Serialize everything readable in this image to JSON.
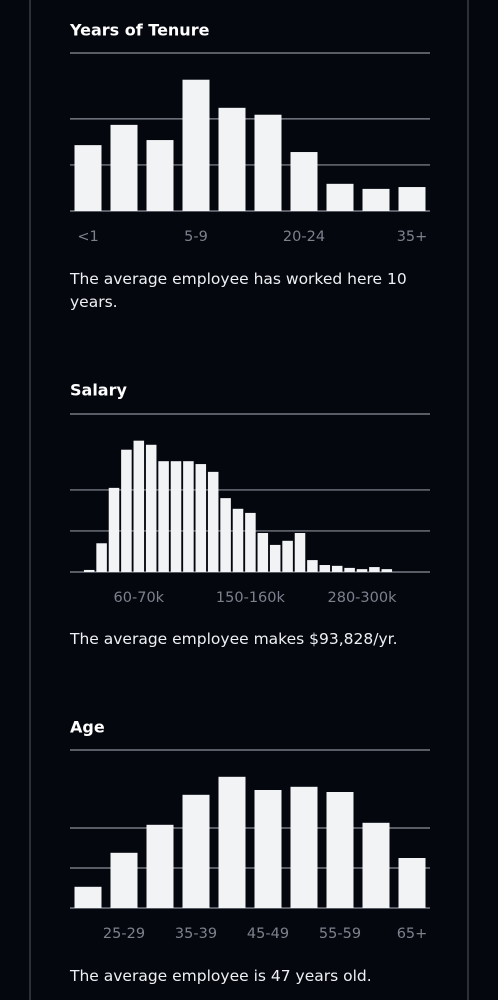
{
  "chart_data": [
    {
      "type": "bar",
      "title": "Years of Tenure",
      "categories": [
        "<1",
        null,
        null,
        "5-9",
        null,
        null,
        "20-24",
        null,
        null,
        "35+"
      ],
      "values": [
        14.3,
        18.7,
        15.4,
        28.5,
        22.4,
        20.9,
        12.8,
        5.9,
        4.8,
        5.2
      ],
      "color": "#f2f3f5",
      "ylim": [
        0,
        34.3
      ],
      "yticks": [
        0,
        10,
        20
      ],
      "grid": true,
      "annotation": "The average employee has worked here 10 years."
    },
    {
      "type": "bar",
      "title": "Salary",
      "categories": [
        null,
        null,
        null,
        null,
        "60-70k",
        null,
        null,
        null,
        null,
        null,
        null,
        null,
        null,
        "150-160k",
        null,
        null,
        null,
        null,
        null,
        null,
        null,
        null,
        "280-300k",
        null,
        null
      ],
      "values": [
        0.5,
        7,
        20.5,
        29.8,
        32,
        31,
        27,
        27,
        27,
        26.3,
        24.4,
        18,
        15.4,
        14.4,
        9.5,
        6.6,
        7.6,
        9.5,
        2.9,
        1.7,
        1.5,
        1,
        0.7,
        1.2,
        0.7
      ],
      "color": "#f2f3f5",
      "ylim": [
        0,
        38.5
      ],
      "yticks": [
        0,
        10,
        20
      ],
      "grid": true,
      "annotation": "The average employee makes $93,828/yr."
    },
    {
      "type": "bar",
      "title": "Age",
      "categories": [
        null,
        "25-29",
        null,
        "35-39",
        null,
        "45-49",
        null,
        "55-59",
        null,
        "65+"
      ],
      "values": [
        5.3,
        13.8,
        20.8,
        28.3,
        32.8,
        29.5,
        30.3,
        29,
        21.3,
        12.5
      ],
      "color": "#f2f3f5",
      "ylim": [
        0,
        39.5
      ],
      "yticks": [
        0,
        10,
        20
      ],
      "grid": true,
      "annotation": "The average employee is 47 years old."
    }
  ]
}
